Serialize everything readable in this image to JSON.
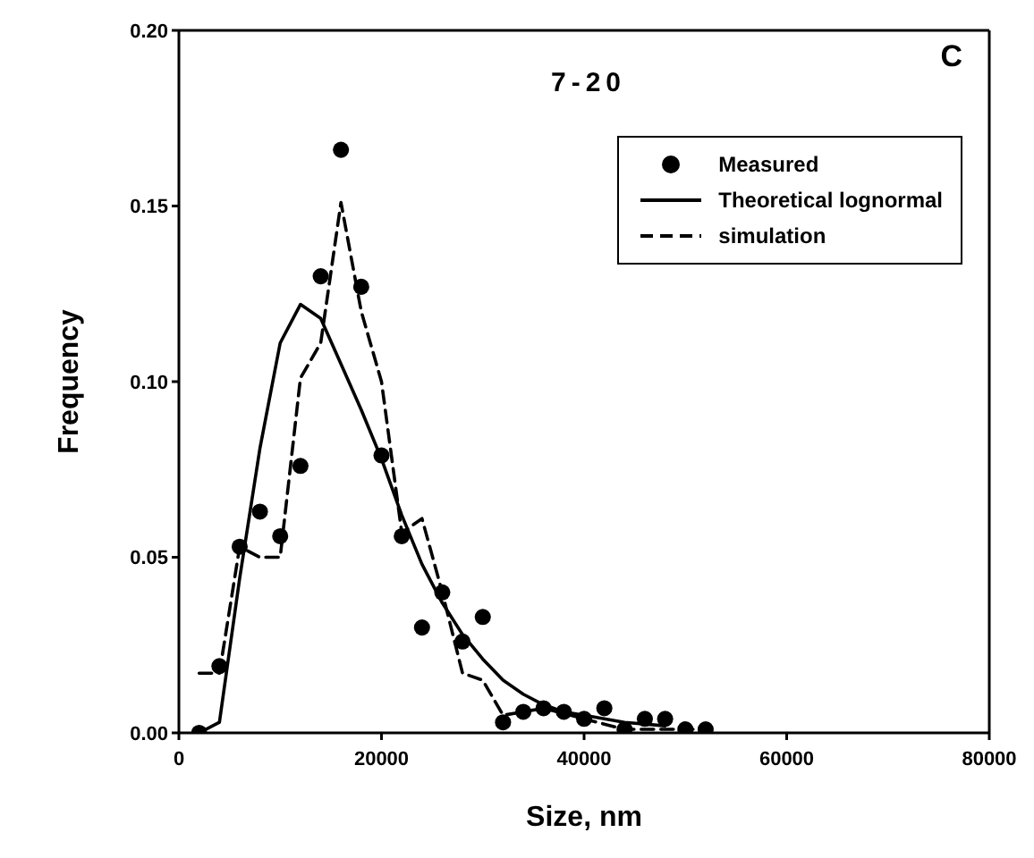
{
  "chart_data": {
    "type": "line",
    "title": "7-20",
    "annotations": [
      "C"
    ],
    "xlabel": "Size,  nm",
    "ylabel": "Frequency",
    "xlim": [
      0,
      80000
    ],
    "xticks": [
      0,
      20000,
      40000,
      60000,
      80000
    ],
    "ylim": [
      0,
      0.2
    ],
    "yticks": [
      {
        "value": 0,
        "label": "0.00"
      },
      {
        "value": 0.05,
        "label": "0.05"
      },
      {
        "value": 0.1,
        "label": "0.10"
      },
      {
        "value": 0.15,
        "label": "0.15"
      },
      {
        "value": 0.2,
        "label": "0.20"
      }
    ],
    "grid": false,
    "legend": "top right",
    "series": [
      {
        "name": "Measured",
        "type": "scatter",
        "marker": "circle",
        "color": "#000000",
        "x": [
          2000,
          4000,
          6000,
          8000,
          10000,
          12000,
          14000,
          16000,
          18000,
          20000,
          22000,
          24000,
          26000,
          28000,
          30000,
          32000,
          34000,
          36000,
          38000,
          40000,
          42000,
          44000,
          46000,
          48000,
          50000,
          52000
        ],
        "values": [
          0.0,
          0.019,
          0.053,
          0.063,
          0.056,
          0.076,
          0.13,
          0.166,
          0.127,
          0.079,
          0.056,
          0.03,
          0.04,
          0.026,
          0.033,
          0.003,
          0.006,
          0.007,
          0.006,
          0.004,
          0.007,
          0.001,
          0.004,
          0.004,
          0.001,
          0.001
        ]
      },
      {
        "name": "Theoretical lognormal",
        "type": "line",
        "marker": "none",
        "line_style": "solid",
        "color": "#000000",
        "x": [
          2000,
          4000,
          6000,
          8000,
          10000,
          12000,
          14000,
          16000,
          18000,
          20000,
          22000,
          24000,
          26000,
          28000,
          30000,
          32000,
          34000,
          36000,
          38000,
          40000,
          44000,
          48000
        ],
        "values": [
          0.0,
          0.003,
          0.044,
          0.081,
          0.111,
          0.122,
          0.118,
          0.105,
          0.092,
          0.078,
          0.062,
          0.048,
          0.037,
          0.028,
          0.021,
          0.015,
          0.011,
          0.008,
          0.006,
          0.005,
          0.003,
          0.002
        ]
      },
      {
        "name": "simulation",
        "type": "line",
        "marker": "none",
        "line_style": "dashed",
        "color": "#000000",
        "x": [
          2000,
          4000,
          6000,
          8000,
          10000,
          12000,
          14000,
          16000,
          18000,
          20000,
          22000,
          24000,
          26000,
          28000,
          30000,
          32000,
          36000,
          40000,
          44000,
          48000,
          52000
        ],
        "values": [
          0.017,
          0.017,
          0.053,
          0.05,
          0.05,
          0.101,
          0.111,
          0.151,
          0.12,
          0.1,
          0.057,
          0.061,
          0.04,
          0.017,
          0.015,
          0.005,
          0.007,
          0.004,
          0.001,
          0.001,
          0.001
        ]
      }
    ]
  }
}
